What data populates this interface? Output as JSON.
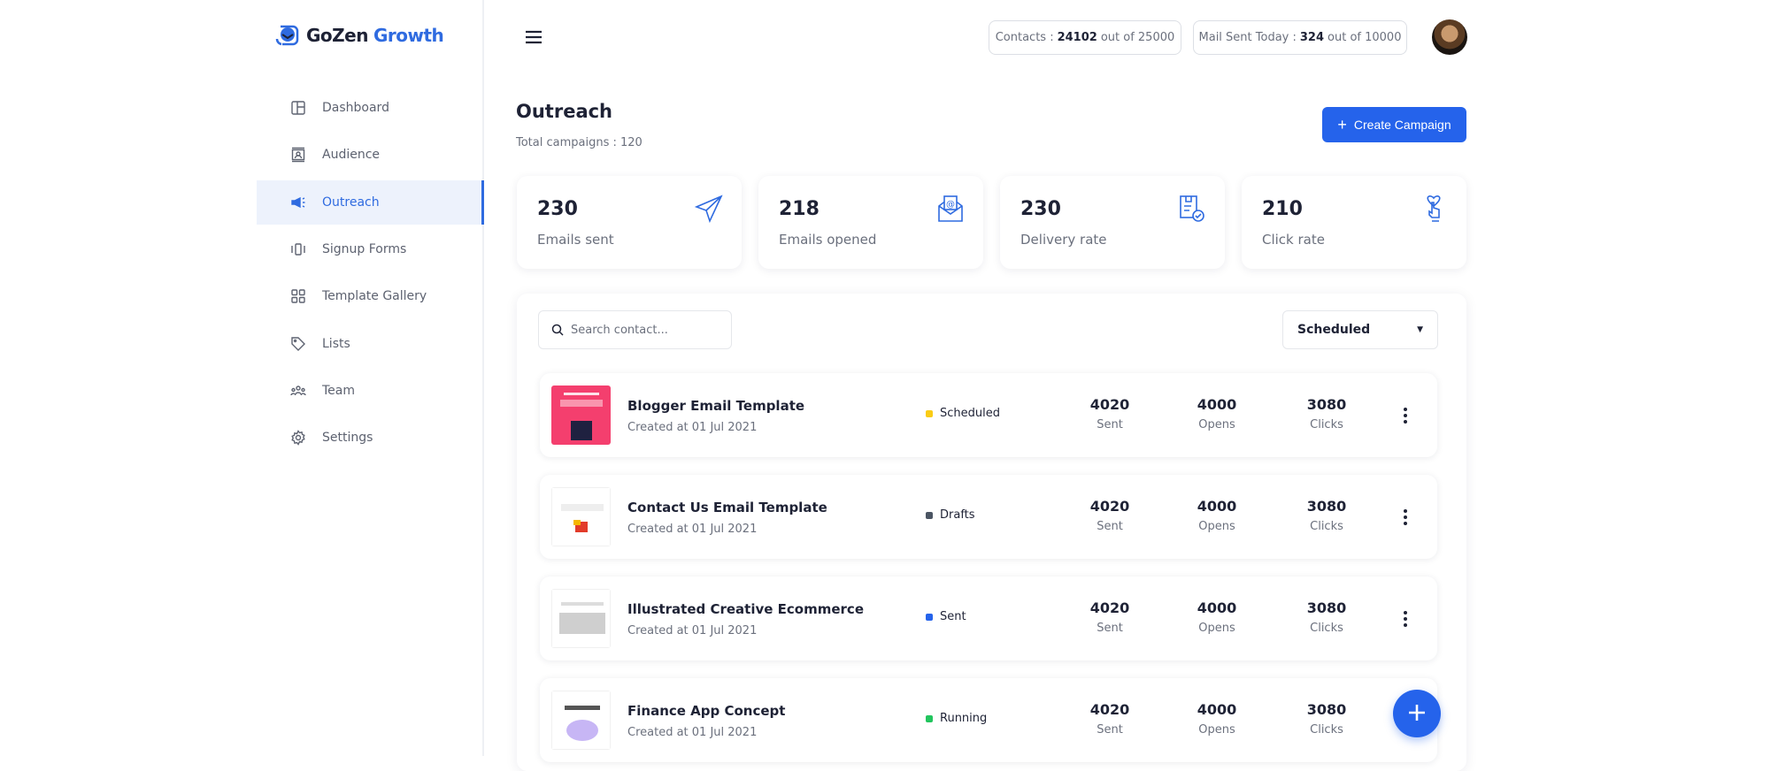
{
  "brand": {
    "name_part1": "GoZen",
    "name_part2": "Growth",
    "accent": "#2563eb"
  },
  "sidebar": {
    "items": [
      {
        "label": "Dashboard",
        "icon": "dashboard-icon"
      },
      {
        "label": "Audience",
        "icon": "audience-icon"
      },
      {
        "label": "Outreach",
        "icon": "megaphone-icon",
        "active": true
      },
      {
        "label": "Signup Forms",
        "icon": "forms-icon"
      },
      {
        "label": "Template Gallery",
        "icon": "grid-icon"
      },
      {
        "label": "Lists",
        "icon": "tag-icon"
      },
      {
        "label": "Team",
        "icon": "team-icon"
      },
      {
        "label": "Settings",
        "icon": "gear-icon"
      }
    ]
  },
  "header": {
    "contacts": {
      "label": "Contacts :",
      "value": "24102",
      "suffix": "out of 25000"
    },
    "mail": {
      "label": "Mail Sent Today :",
      "value": "324",
      "suffix": "out of 10000"
    }
  },
  "page": {
    "title": "Outreach",
    "subtitle": "Total campaigns : 120",
    "create_label": "Create Campaign"
  },
  "stats": [
    {
      "value": "230",
      "label": "Emails sent",
      "icon": "paper-plane-icon"
    },
    {
      "value": "218",
      "label": "Emails opened",
      "icon": "open-mail-icon"
    },
    {
      "value": "230",
      "label": "Delivery rate",
      "icon": "delivery-icon"
    },
    {
      "value": "210",
      "label": "Click rate",
      "icon": "click-icon"
    }
  ],
  "filters": {
    "search_placeholder": "Search contact...",
    "status_selected": "Scheduled"
  },
  "campaigns": [
    {
      "name": "Blogger Email Template",
      "date": "Created at 01 Jul 2021",
      "status": "Scheduled",
      "status_color": "#facc15",
      "sent": "4020",
      "opens": "4000",
      "clicks": "3080"
    },
    {
      "name": "Contact Us Email Template",
      "date": "Created at 01 Jul 2021",
      "status": "Drafts",
      "status_color": "#4b5563",
      "sent": "4020",
      "opens": "4000",
      "clicks": "3080"
    },
    {
      "name": "Illustrated Creative Ecommerce",
      "date": "Created at 01 Jul 2021",
      "status": "Sent",
      "status_color": "#2563eb",
      "sent": "4020",
      "opens": "4000",
      "clicks": "3080"
    },
    {
      "name": "Finance App Concept",
      "date": "Created at 01 Jul 2021",
      "status": "Running",
      "status_color": "#22c55e",
      "sent": "4020",
      "opens": "4000",
      "clicks": "3080"
    }
  ],
  "col_labels": {
    "sent": "Sent",
    "opens": "Opens",
    "clicks": "Clicks"
  }
}
